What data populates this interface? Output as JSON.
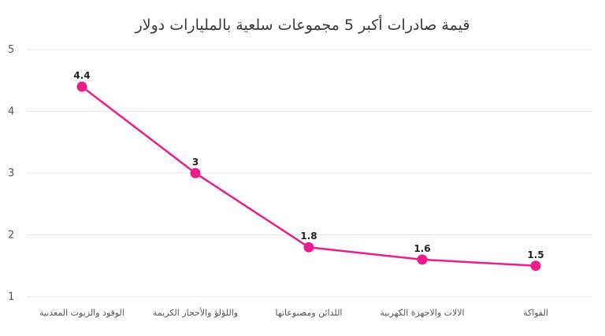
{
  "chart_data": {
    "type": "line",
    "title": "قيمة صادرات أكبر 5 مجموعات سلعية بالمليارات دولار",
    "xlabel": "",
    "ylabel": "",
    "categories": [
      "الوقود والزيوت المعدنية",
      "واللؤلؤ والأحجار الكريمة",
      "اللدائن ومصنوعاتها",
      "الالات والاجهزة الكهربية",
      "الفواكة"
    ],
    "series": [
      {
        "values": [
          4.4,
          3,
          1.8,
          1.6,
          1.5
        ],
        "labels": [
          "4.4",
          "3",
          "1.8",
          "1.6",
          "1.5"
        ],
        "color": "#ec1c8c"
      }
    ],
    "yticks": [
      "1",
      "2",
      "3",
      "4",
      "5"
    ],
    "ylim": [
      1,
      5
    ],
    "grid": true,
    "legend": "none",
    "colors": {
      "line": "#ec1c8c",
      "grid": "#e6e6e6",
      "text": "#555555"
    }
  }
}
